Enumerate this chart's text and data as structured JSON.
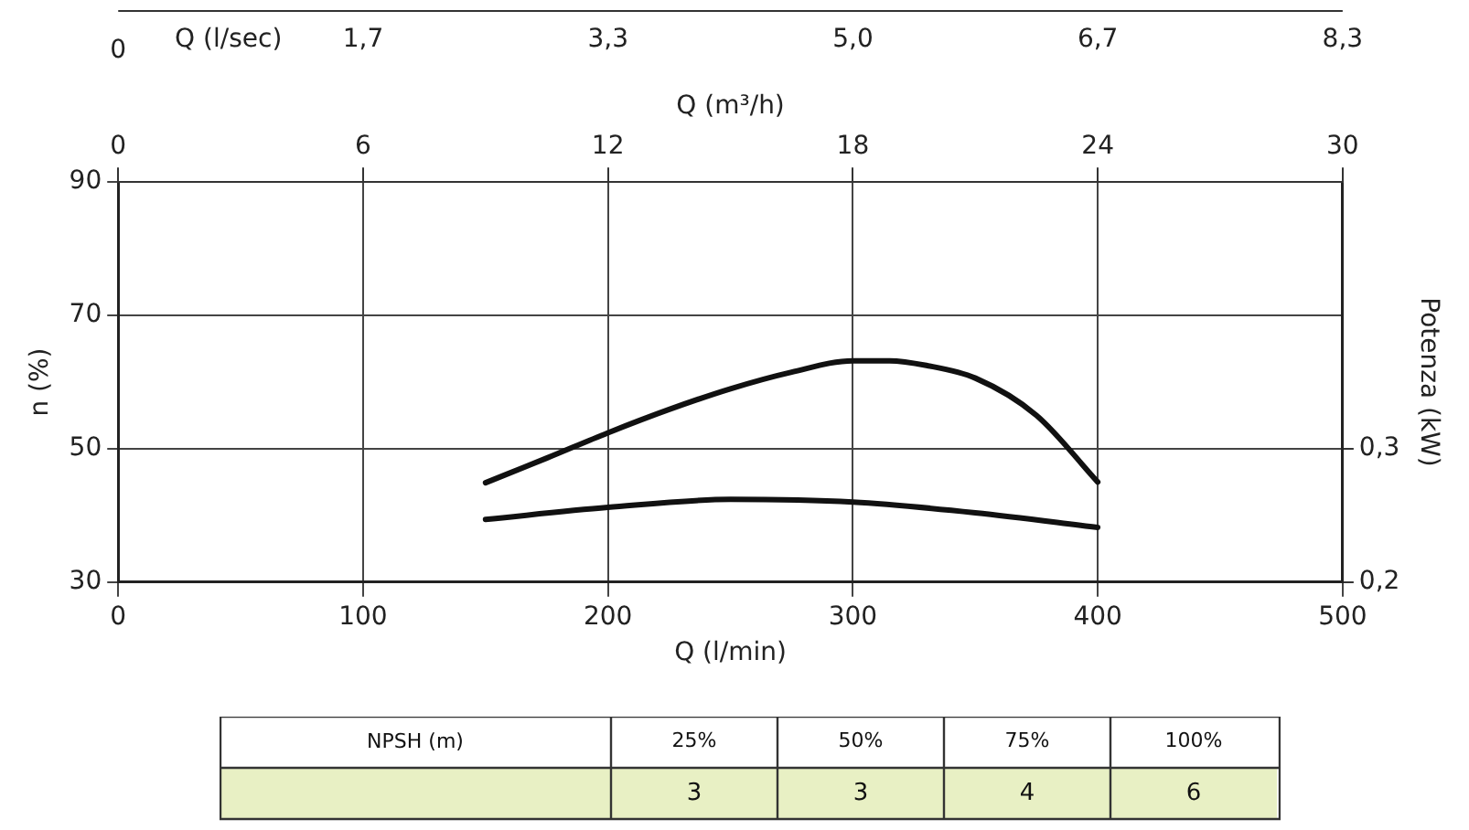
{
  "chart_data": [
    {
      "type": "line",
      "xlabel": "Q (l/min)",
      "ylabel": "n (%)",
      "y2label": "Potenza (kW)",
      "xlim": [
        0,
        500
      ],
      "xticks": [
        0,
        100,
        200,
        300,
        400,
        500
      ],
      "ylim": [
        30,
        90
      ],
      "yticks": [
        30,
        50,
        70,
        90
      ],
      "y2lim": [
        0.2,
        0.5
      ],
      "y2ticks": [
        {
          "value": 0.2,
          "label": "0,2"
        },
        {
          "value": 0.3,
          "label": "0,3"
        }
      ],
      "x2label": "Q (m³/h)",
      "x2lim": [
        0,
        30
      ],
      "x2ticks": [
        0,
        6,
        12,
        18,
        24,
        30
      ],
      "annotations": [
        "0",
        "Q (l/sec)",
        "1,7",
        "3,3",
        "5,0",
        "6,7",
        "8,3"
      ],
      "grid": true,
      "legend": false,
      "marker": "none",
      "line_style": "solid",
      "series": [
        {
          "color": "#111111",
          "x": [
            150,
            175,
            200,
            225,
            250,
            275,
            300,
            315,
            330,
            350,
            375,
            400
          ],
          "values": [
            44.9,
            48.6,
            52.4,
            55.9,
            59,
            61.5,
            63.2,
            63.2,
            62.5,
            60.6,
            55,
            45
          ]
        },
        {
          "color": "#111111",
          "axis": "y2",
          "x": [
            150,
            200,
            250,
            300,
            350,
            400
          ],
          "values": [
            0.247,
            0.256,
            0.262,
            0.26,
            0.252,
            0.241
          ]
        }
      ]
    },
    {
      "type": "heatmap",
      "ylabel": "NPSH (m)",
      "data_labels": true,
      "categories": [
        "25%",
        "50%",
        "75%",
        "100%"
      ],
      "y_categories": [
        null
      ],
      "cells": [
        [
          3,
          3,
          4,
          6
        ]
      ],
      "color": "#e8f0c4"
    }
  ]
}
